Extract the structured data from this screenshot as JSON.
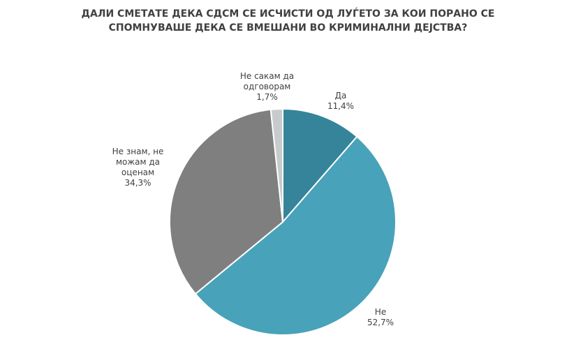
{
  "chart_data": {
    "type": "pie",
    "title_lines": [
      "ДАЛИ СМЕТАТЕ ДЕКА СДСМ СЕ ИСЧИСТИ ОД ЛУЃЕТО ЗА КОИ ПОРАНО СЕ",
      "СПОМНУВАШЕ ДЕКА СЕ ВМЕШАНИ ВО КРИМИНАЛНИ ДЕЈСТВА?"
    ],
    "categories": [
      "Да",
      "Не",
      "Не знам, не можам да оценам",
      "Не сакам да одговорам"
    ],
    "values": [
      11.4,
      52.7,
      34.3,
      1.7
    ],
    "value_labels": [
      "11,4%",
      "52,7%",
      "34,3%",
      "1,7%"
    ],
    "colors": [
      "#35849a",
      "#48a2ba",
      "#7f7f7f",
      "#c8cbcc"
    ]
  }
}
